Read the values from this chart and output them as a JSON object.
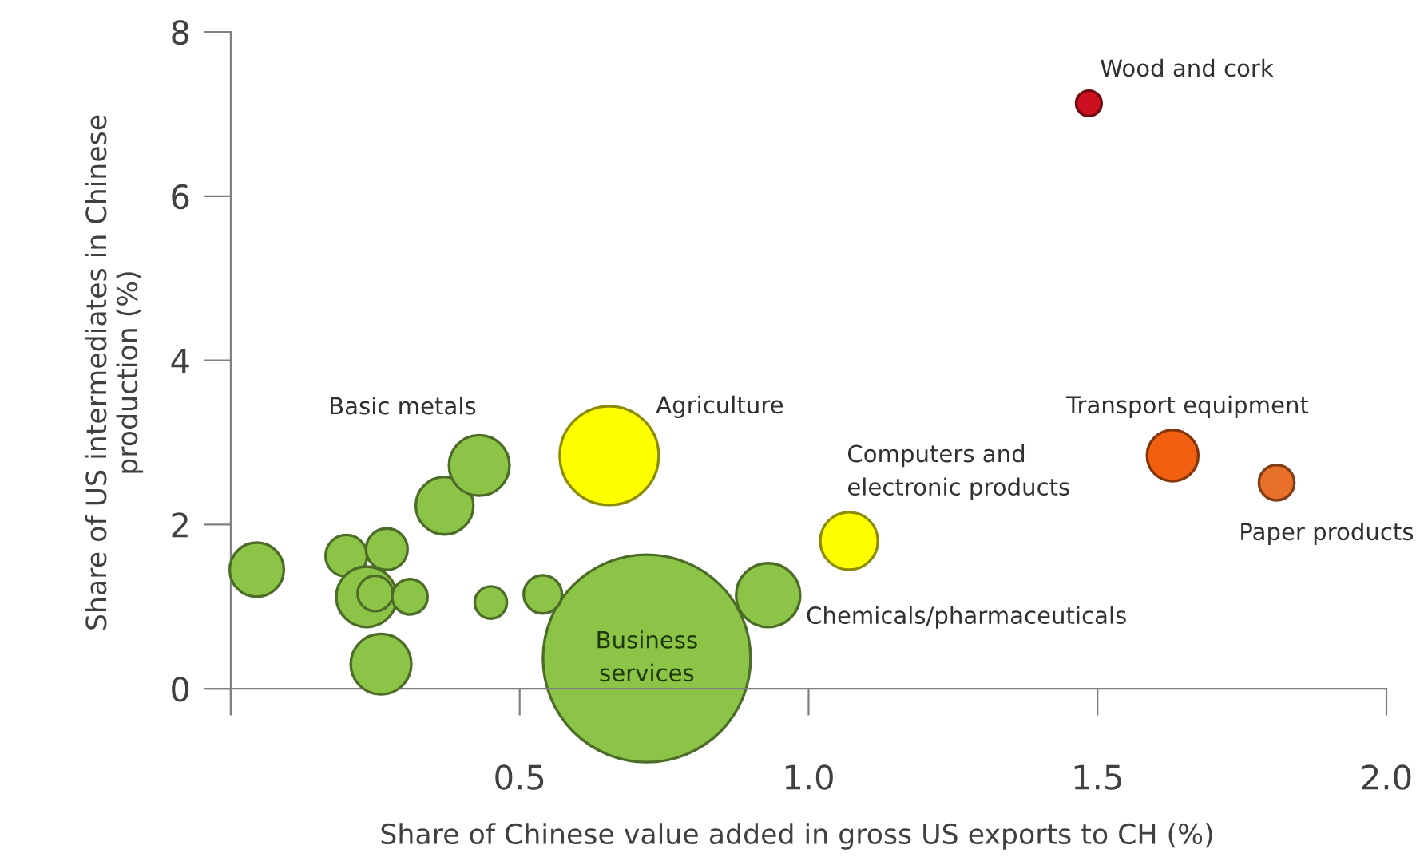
{
  "chart_data": {
    "type": "bubble",
    "xlabel": "Share of Chinese value added in gross US exports to CH (%)",
    "ylabel": "Share of US intermediates in Chinese\nproduction (%)",
    "xlim": [
      -0.04,
      2.0
    ],
    "ylim": [
      -0.3,
      8
    ],
    "xticks": [
      {
        "value": 0,
        "label": null
      },
      {
        "value": 0.5,
        "label": "0.5"
      },
      {
        "value": 1.0,
        "label": "1.0"
      },
      {
        "value": 1.5,
        "label": "1.5"
      },
      {
        "value": 2.0,
        "label": "2.0"
      }
    ],
    "yticks": [
      0,
      2,
      4,
      6,
      8
    ],
    "grid": false,
    "legend": false,
    "series": [
      {
        "x": [
          0.045,
          0.2,
          0.27,
          0.235,
          0.25,
          0.31,
          0.26,
          0.37,
          0.43,
          0.45,
          0.54,
          0.655,
          0.72,
          0.93,
          1.07,
          1.485,
          1.63,
          1.81
        ],
        "values": [
          1.45,
          1.62,
          1.7,
          1.12,
          1.16,
          1.12,
          0.3,
          2.23,
          2.72,
          1.05,
          1.15,
          2.84,
          0.37,
          1.14,
          1.8,
          7.13,
          2.84,
          2.51
        ],
        "sizes": [
          0.068,
          0.04,
          0.04,
          0.085,
          0.029,
          0.029,
          0.085,
          0.077,
          0.085,
          0.024,
          0.034,
          0.227,
          1,
          0.095,
          0.077,
          0.015,
          0.061,
          0.029
        ],
        "colors": [
          "#8cc448",
          "#8cc448",
          "#8cc448",
          "#8cc448",
          "#8cc448",
          "#8cc448",
          "#8cc448",
          "#8cc448",
          "#8cc448",
          "#8cc448",
          "#8cc448",
          "#ffff00",
          "#8cc448",
          "#8cc448",
          "#ffff00",
          "#cc1020",
          "#f06010",
          "#e8702a"
        ]
      }
    ],
    "annotations": [
      {
        "text": "Basic metals",
        "x": 0.43,
        "y": 2.72
      },
      {
        "text": "Agriculture",
        "x": 0.655,
        "y": 2.84
      },
      {
        "text": "Computers and\nelectronic products",
        "x": 1.07,
        "y": 1.8
      },
      {
        "text": "Chemicals/pharmaceuticals",
        "x": 0.93,
        "y": 1.14
      },
      {
        "text": "Wood and cork",
        "x": 1.485,
        "y": 7.13
      },
      {
        "text": "Transport equipment",
        "x": 1.63,
        "y": 2.84
      },
      {
        "text": "Paper products",
        "x": 1.81,
        "y": 2.51
      },
      {
        "text": "Business\nservices",
        "x": 0.72,
        "y": 0.37
      }
    ]
  }
}
